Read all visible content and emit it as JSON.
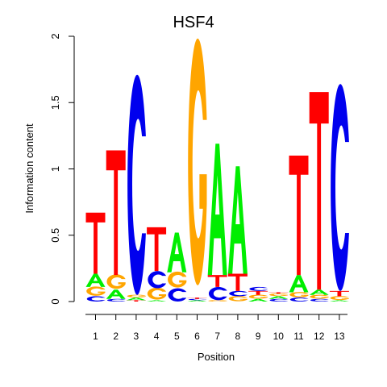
{
  "chart_data": {
    "type": "sequence-logo",
    "title": "HSF4",
    "xlabel": "Position",
    "ylabel": "Information content",
    "ylim": [
      0,
      2
    ],
    "y_ticks": [
      "0",
      "0.5",
      "1",
      "1.5",
      "2"
    ],
    "categories": [
      "1",
      "2",
      "3",
      "4",
      "5",
      "6",
      "7",
      "8",
      "9",
      "10",
      "11",
      "12",
      "13"
    ],
    "colors": {
      "A": "#00ee00",
      "C": "#0000ee",
      "G": "#ffa500",
      "T": "#ff0000"
    },
    "positions": [
      {
        "pos": "1",
        "stack": [
          [
            "C",
            0.04
          ],
          [
            "G",
            0.07
          ],
          [
            "A",
            0.1
          ],
          [
            "T",
            0.46
          ]
        ]
      },
      {
        "pos": "2",
        "stack": [
          [
            "C",
            0.02
          ],
          [
            "A",
            0.07
          ],
          [
            "G",
            0.11
          ],
          [
            "T",
            0.94
          ]
        ]
      },
      {
        "pos": "3",
        "stack": [
          [
            "T",
            0.01
          ],
          [
            "A",
            0.02
          ],
          [
            "G",
            0.02
          ],
          [
            "C",
            1.66
          ]
        ]
      },
      {
        "pos": "4",
        "stack": [
          [
            "A",
            0.01
          ],
          [
            "G",
            0.09
          ],
          [
            "C",
            0.13
          ],
          [
            "T",
            0.33
          ]
        ]
      },
      {
        "pos": "5",
        "stack": [
          [
            "C",
            0.1
          ],
          [
            "G",
            0.12
          ],
          [
            "A",
            0.3
          ]
        ]
      },
      {
        "pos": "6",
        "stack": [
          [
            "A",
            0.01
          ],
          [
            "C",
            0.01
          ],
          [
            "T",
            0.01
          ],
          [
            "G",
            1.86
          ]
        ]
      },
      {
        "pos": "7",
        "stack": [
          [
            "G",
            0.01
          ],
          [
            "C",
            0.1
          ],
          [
            "T",
            0.09
          ],
          [
            "A",
            0.99
          ]
        ]
      },
      {
        "pos": "8",
        "stack": [
          [
            "G",
            0.04
          ],
          [
            "C",
            0.04
          ],
          [
            "T",
            0.13
          ],
          [
            "A",
            0.81
          ]
        ]
      },
      {
        "pos": "9",
        "stack": [
          [
            "A",
            0.02
          ],
          [
            "G",
            0.03
          ],
          [
            "T",
            0.03
          ],
          [
            "C",
            0.03
          ]
        ]
      },
      {
        "pos": "10",
        "stack": [
          [
            "C",
            0.02
          ],
          [
            "A",
            0.02
          ],
          [
            "G",
            0.02
          ],
          [
            "T",
            0.01
          ]
        ]
      },
      {
        "pos": "11",
        "stack": [
          [
            "C",
            0.03
          ],
          [
            "G",
            0.04
          ],
          [
            "A",
            0.13
          ],
          [
            "T",
            0.9
          ]
        ]
      },
      {
        "pos": "12",
        "stack": [
          [
            "C",
            0.02
          ],
          [
            "G",
            0.03
          ],
          [
            "A",
            0.04
          ],
          [
            "T",
            1.49
          ]
        ]
      },
      {
        "pos": "13",
        "stack": [
          [
            "A",
            0.01
          ],
          [
            "G",
            0.03
          ],
          [
            "T",
            0.04
          ],
          [
            "C",
            1.56
          ]
        ]
      }
    ]
  }
}
